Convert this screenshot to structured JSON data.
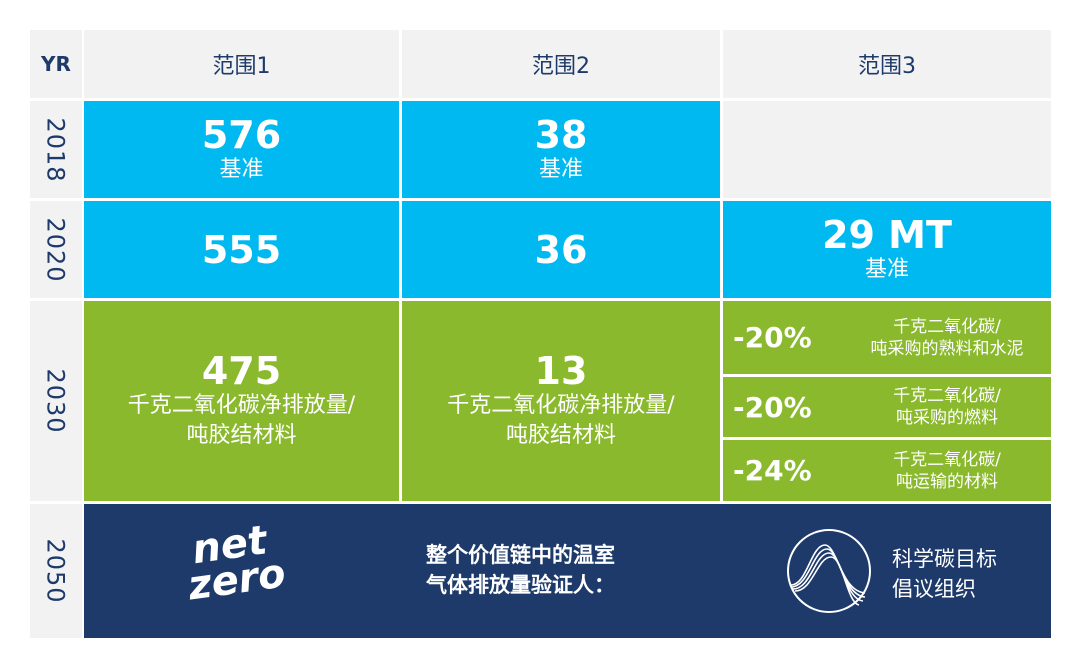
{
  "header": {
    "yr": "YR",
    "scope1": "范围1",
    "scope2": "范围2",
    "scope3": "范围3"
  },
  "rows": {
    "y2018": {
      "year": "2018",
      "scope1_value": "576",
      "scope1_note": "基准",
      "scope2_value": "38",
      "scope2_note": "基准"
    },
    "y2020": {
      "year": "2020",
      "scope1_value": "555",
      "scope2_value": "36",
      "scope3_value": "29 MT",
      "scope3_note": "基准"
    },
    "y2030": {
      "year": "2030",
      "scope1_value": "475",
      "scope1_note_line1": "千克二氧化碳净排放量/",
      "scope1_note_line2": "吨胶结材料",
      "scope2_value": "13",
      "scope2_note_line1": "千克二氧化碳净排放量/",
      "scope2_note_line2": "吨胶结材料",
      "scope3_items": [
        {
          "pct": "-20%",
          "line1": "千克二氧化碳/",
          "line2": "吨采购的熟料和水泥"
        },
        {
          "pct": "-20%",
          "line1": "千克二氧化碳/",
          "line2": "吨采购的燃料"
        },
        {
          "pct": "-24%",
          "line1": "千克二氧化碳/",
          "line2": "吨运输的材料"
        }
      ]
    },
    "y2050": {
      "year": "2050",
      "logo_line1": "net",
      "logo_line2": "zero",
      "cert_line1": "整个价值链中的温室",
      "cert_line2": "气体排放量验证人：",
      "sbti_line1": "科学碳目标",
      "sbti_line2": "倡议组织"
    }
  },
  "colors": {
    "blue": "#00b9f1",
    "green": "#8ab92d",
    "navy": "#1d3a6b",
    "header_bg": "#f2f2f2"
  },
  "icons": [
    "net-zero-logo",
    "sbti-wave-icon"
  ]
}
